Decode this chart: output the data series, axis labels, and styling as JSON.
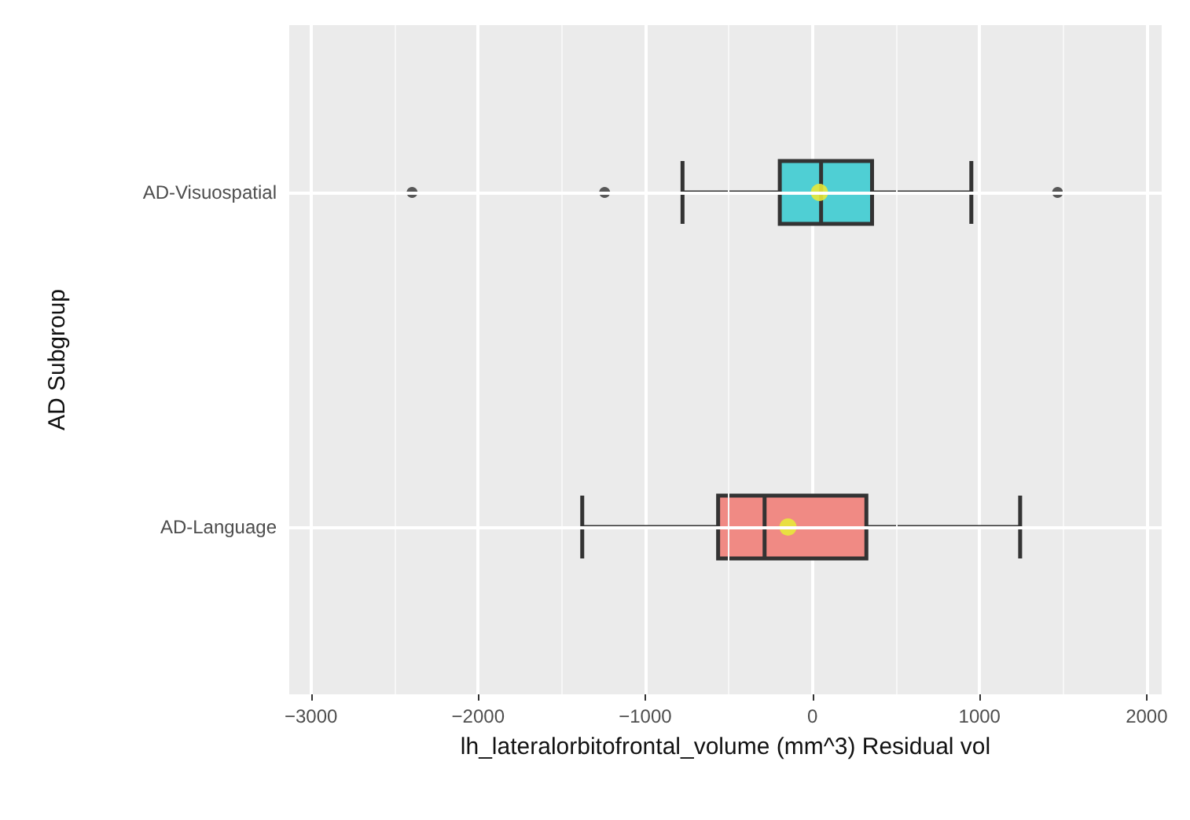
{
  "chart_data": {
    "type": "box",
    "orientation": "horizontal",
    "xlabel": "lh_lateralorbitofrontal_volume (mm^3) Residual vol",
    "ylabel": "AD Subgroup",
    "categories": [
      "AD-Visuospatial",
      "AD-Language"
    ],
    "colors": [
      "#4fcfd4",
      "#f08a84"
    ],
    "boxes": [
      {
        "low": -777,
        "q1": -195,
        "median": 52,
        "q3": 357,
        "high": 951,
        "mean": 42,
        "outliers": [
          -2395,
          -1243,
          1467
        ]
      },
      {
        "low": -1377,
        "q1": -564,
        "median": -286,
        "q3": 323,
        "high": 1243,
        "mean": -146
      }
    ],
    "xlim": [
      -3130,
      2090
    ],
    "xticks": [
      -3000,
      -2000,
      -1000,
      0,
      1000,
      2000
    ],
    "grid": true
  }
}
